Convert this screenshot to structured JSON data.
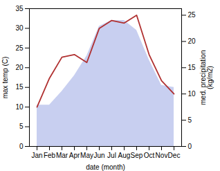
{
  "chart_data": {
    "type": "line",
    "xlabel": "date (month)",
    "ylabel": "max temp (C)",
    "y2label": "med. precipitation\n(kg/m2)",
    "categories": [
      "Jan",
      "Feb",
      "Mar",
      "Apr",
      "May",
      "Jun",
      "Jul",
      "Aug",
      "Sep",
      "Oct",
      "Nov",
      "Dec"
    ],
    "series": [
      {
        "type": "area",
        "color": "#c8cff0",
        "values": [
          10.5,
          10.5,
          14.0,
          18.0,
          23.0,
          30.5,
          32.0,
          32.0,
          29.5,
          22.0,
          15.5,
          15.0
        ]
      },
      {
        "type": "line",
        "axis": "y2",
        "color": "#b03030",
        "values": [
          7.5,
          13.0,
          17.0,
          17.5,
          16.0,
          22.5,
          24.0,
          23.5,
          25.0,
          17.5,
          12.5,
          10.0
        ]
      }
    ],
    "ylim": [
      0,
      35
    ],
    "yticks": [
      0,
      5,
      10,
      15,
      20,
      25,
      30,
      35
    ],
    "y2lim": [
      0,
      26.25
    ],
    "y2ticks": [
      0,
      5,
      10,
      15,
      20,
      25
    ],
    "grid": false
  }
}
